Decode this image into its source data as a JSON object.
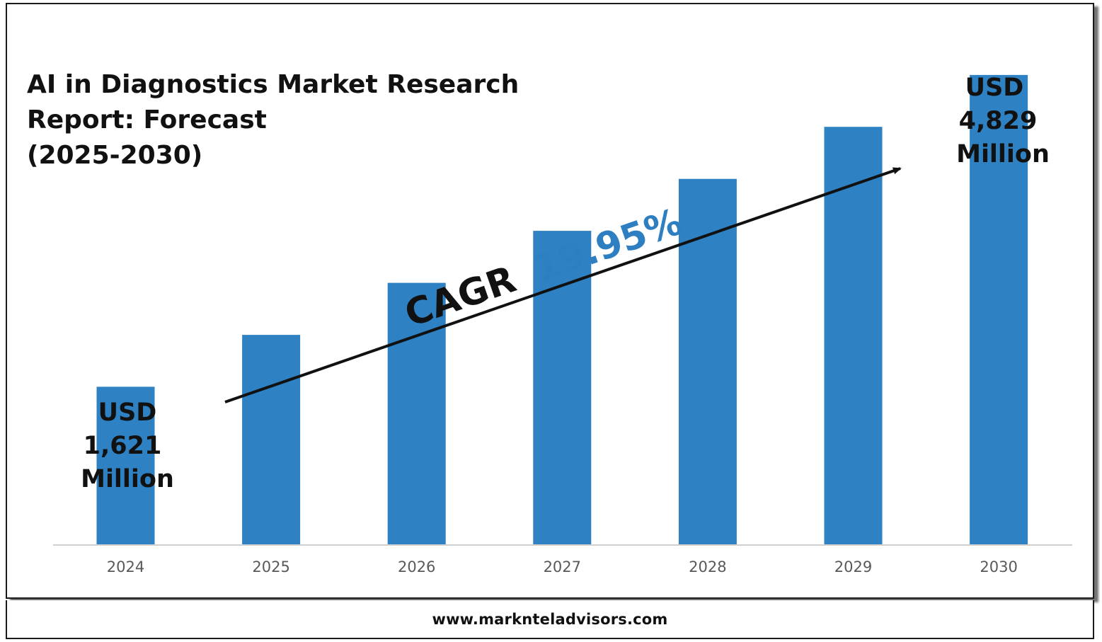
{
  "colors": {
    "bar": "#2e81c2",
    "accent": "#2e7fc1",
    "axis": "#d0d0d0",
    "text": "#111111",
    "tick_text": "#595959"
  },
  "title_lines": [
    "AI in Diagnostics Market Research",
    "Report: Forecast",
    "(2025-2030)"
  ],
  "cagr": {
    "prefix": "CAGR",
    "value": "19.95%"
  },
  "annotations": {
    "start": [
      "USD",
      "1,621",
      "Million"
    ],
    "end": [
      "USD",
      "4,829",
      "Million"
    ]
  },
  "footer": {
    "url": "www.marknteladvisors.com"
  },
  "chart_data": {
    "type": "bar",
    "title": "AI in Diagnostics Market Research Report: Forecast (2025-2030)",
    "categories": [
      "2024",
      "2025",
      "2026",
      "2027",
      "2028",
      "2029",
      "2030"
    ],
    "values": [
      1621,
      2155,
      2690,
      3225,
      3760,
      4295,
      4829
    ],
    "unit": "USD Million",
    "ylim": [
      0,
      5600
    ],
    "grid": false,
    "legend": "none",
    "trend_arrow": true
  }
}
